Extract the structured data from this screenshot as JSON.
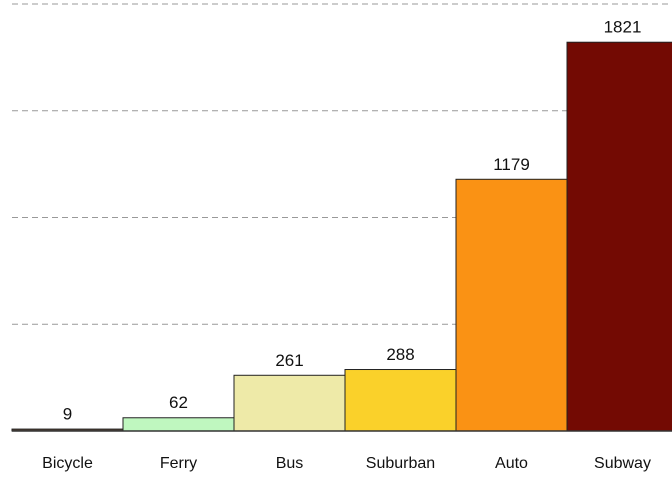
{
  "chart_data": {
    "type": "bar",
    "categories": [
      "Bicycle",
      "Ferry",
      "Bus",
      "Suburban",
      "Auto",
      "Subway"
    ],
    "values": [
      9,
      62,
      261,
      288,
      1179,
      1821
    ],
    "colors": [
      "#5b4636",
      "#bff7bf",
      "#eeeaa8",
      "#fad12a",
      "#fa9214",
      "#730a03"
    ],
    "ylim": [
      0,
      2000
    ],
    "yticks": [
      0,
      500,
      1000,
      1500,
      2000
    ],
    "grid": true
  }
}
